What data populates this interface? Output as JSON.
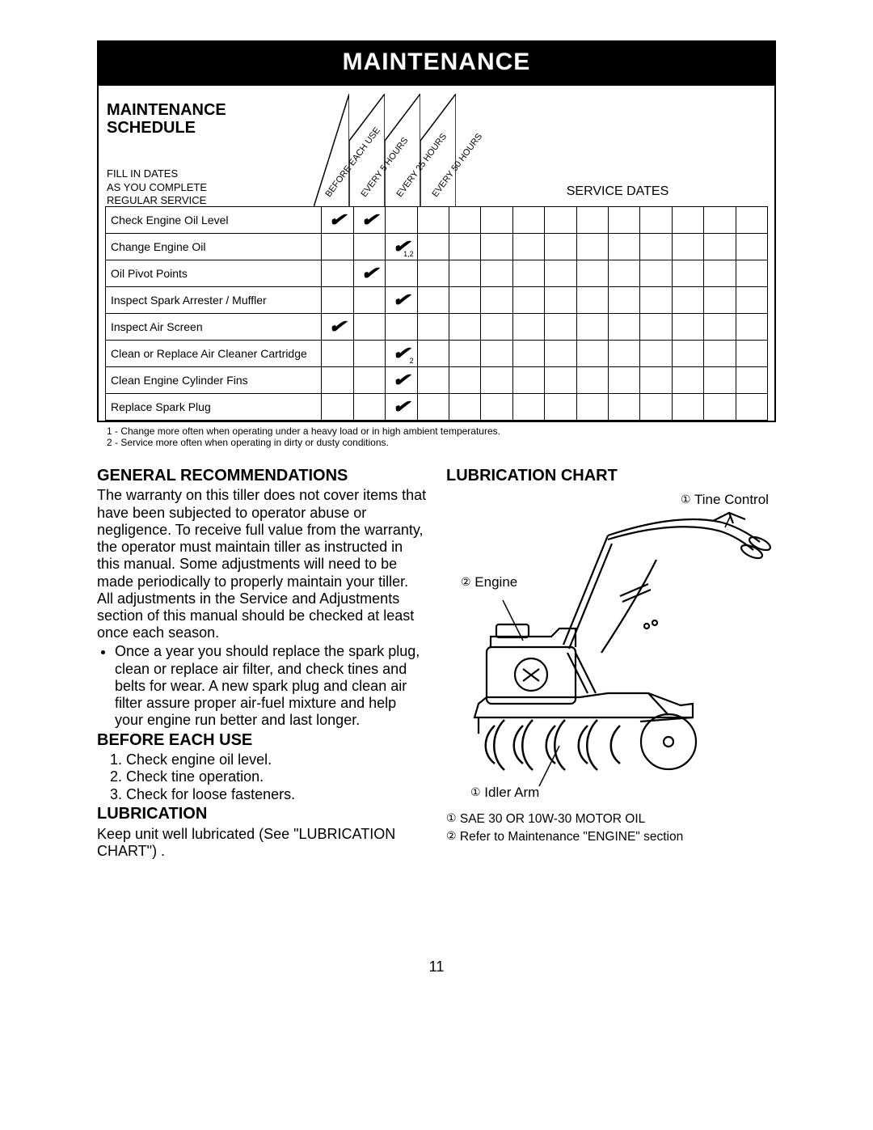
{
  "title": "MAINTENANCE",
  "schedule": {
    "heading_line1": "MAINTENANCE",
    "heading_line2": "SCHEDULE",
    "fill_in_l1": "FILL IN DATES",
    "fill_in_l2": "AS YOU COMPLETE",
    "fill_in_l3": "REGULAR SERVICE",
    "service_dates": "SERVICE DATES",
    "intervals": [
      "BEFORE EACH USE",
      "EVERY 5 HOURS",
      "EVERY 25 HOURS",
      "EVERY 50 HOURS"
    ],
    "tasks": [
      {
        "name": "Check Engine Oil Level",
        "checks": [
          "✔",
          "✔",
          "",
          ""
        ],
        "sub": [
          "",
          "",
          "",
          ""
        ]
      },
      {
        "name": "Change Engine Oil",
        "checks": [
          "",
          "",
          "✔",
          ""
        ],
        "sub": [
          "",
          "",
          "1,2",
          ""
        ]
      },
      {
        "name": "Oil Pivot Points",
        "checks": [
          "",
          "✔",
          "",
          ""
        ],
        "sub": [
          "",
          "",
          "",
          ""
        ]
      },
      {
        "name": "Inspect Spark Arrester / Muffler",
        "checks": [
          "",
          "",
          "✔",
          ""
        ],
        "sub": [
          "",
          "",
          "",
          ""
        ]
      },
      {
        "name": "Inspect Air Screen",
        "checks": [
          "✔",
          "",
          "",
          ""
        ],
        "sub": [
          "",
          "",
          "",
          ""
        ]
      },
      {
        "name": "Clean or Replace Air Cleaner Cartridge",
        "checks": [
          "",
          "",
          "✔",
          ""
        ],
        "sub": [
          "",
          "",
          "2",
          ""
        ]
      },
      {
        "name": "Clean Engine Cylinder Fins",
        "checks": [
          "",
          "",
          "✔",
          ""
        ],
        "sub": [
          "",
          "",
          "",
          ""
        ]
      },
      {
        "name": "Replace Spark Plug",
        "checks": [
          "",
          "",
          "✔",
          ""
        ],
        "sub": [
          "",
          "",
          "",
          ""
        ]
      }
    ],
    "footnote1": "1 - Change more often when operating under a heavy load or in high ambient temperatures.",
    "footnote2": "2 - Service more often when operating in dirty or dusty conditions.",
    "service_date_cols": 10
  },
  "left_col": {
    "h_general": "GENERAL RECOMMENDATIONS",
    "p_general": "The warranty on this tiller does not cover items that  have been subjected to operator abuse or negligence.  To receive full value from the warranty, the operator must maintain tiller as instructed in this manual.  Some adjustments will need to be made periodically to properly maintain your tiller.  All adjustments in the Service and Adjustments section of this manual should  be checked  at  least  once each season.",
    "bullet1": "Once a year you should replace the spark plug, clean or replace air filter, and check tines and belts for wear.  A new spark plug and clean air filter assure proper air-fuel mixture and help your engine run better and last longer.",
    "h_before": "BEFORE EACH USE",
    "before_1": "Check engine oil level.",
    "before_2": "Check tine operation.",
    "before_3": "Check for loose fasteners.",
    "h_lubri": "LUBRICATION",
    "p_lubri": "Keep unit well lubricated (See \"LUBRICATION CHART\") ."
  },
  "right_col": {
    "h_chart": "LUBRICATION CHART",
    "lbl_tine": "Tine Control",
    "lbl_engine": "Engine",
    "lbl_idler": "Idler Arm",
    "legend1": "SAE 30 OR 10W-30 MOTOR OIL",
    "legend2": "Refer to Maintenance  \"ENGINE\" section",
    "circled1": "①",
    "circled2": "②"
  },
  "page_number": "11",
  "colors": {
    "black": "#000000",
    "white": "#ffffff"
  }
}
